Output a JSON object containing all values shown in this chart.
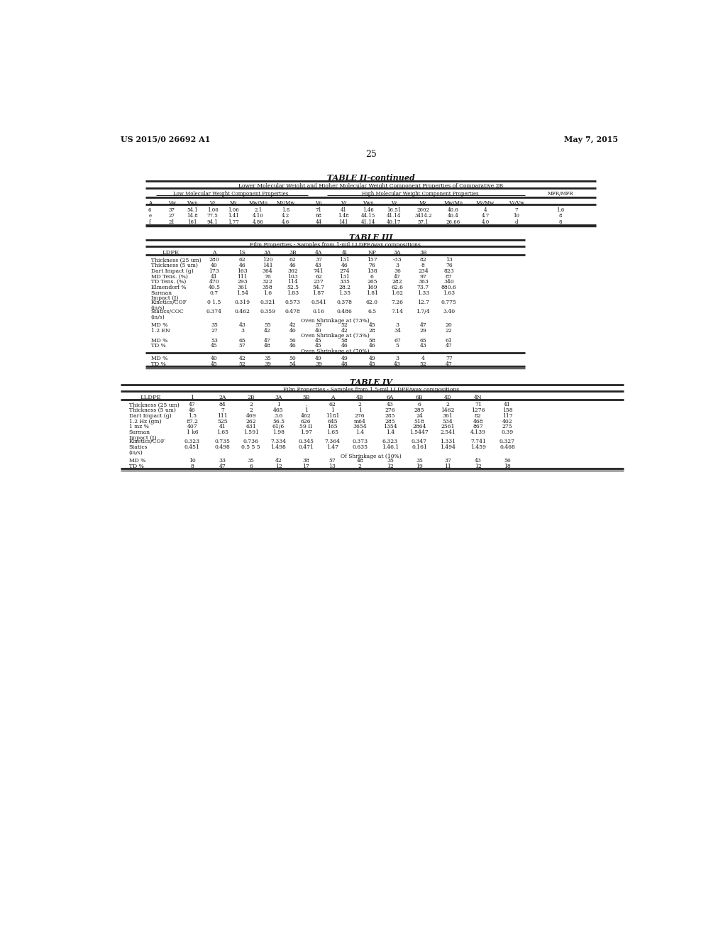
{
  "page_header_left": "US 2015/0 26692 A1",
  "page_header_right": "May 7, 2015",
  "page_number": "25",
  "background_color": "#ffffff",
  "table2_title": "TABLE II-continued",
  "table2_subtitle": "Lower Molecular Weight and Higher Molecular Weight Component Properties of Comparative 2B",
  "table2_group1": "Low Molecular Weight Component Properties",
  "table2_group2": "High Molecular Weight Component Properties",
  "table2_group3": "MFR/MFR",
  "table2_col_headers": [
    "A",
    "Vw",
    "Vwn",
    "Vz",
    "Mz",
    "Mw/Mn",
    "Mz/Mw",
    "Vn",
    "Vr",
    "Vwn",
    "Vz",
    "Mz",
    "Mw/Mn",
    "Mz/Mw",
    "Vz/Vw"
  ],
  "table2_rows": [
    [
      "6",
      "37",
      "54.1",
      "1.06",
      "1.06",
      "2.1",
      "1.8",
      "71",
      "41",
      "1.46",
      "16.51",
      "2002",
      "40.6",
      "4",
      "7",
      "1.6"
    ],
    [
      "e",
      "27",
      "14.8",
      "77.5",
      "1.41",
      "4.10",
      "4.2",
      "68",
      "1.48",
      "44.15",
      "41.14",
      "3414.2",
      "40.4",
      "4.7",
      "10",
      "8"
    ],
    [
      "f",
      "21",
      "161",
      "94.1",
      "1.77",
      "4.86",
      "4.6",
      "44",
      "141",
      "41.14",
      "40.17",
      "57.1",
      "26.66",
      "4.0",
      "d",
      "8"
    ]
  ],
  "table3_title": "TABLE III",
  "table3_subtitle": "Film Properties - Samples from 1-mil LLDPE/wax compositions",
  "table3_col_headers": [
    "LDPE",
    "A",
    "1S",
    "3A",
    "3B",
    "4A",
    "4I",
    "NP",
    "3A",
    "3B"
  ],
  "table3_rows": [
    [
      "Thickness (25 um)",
      "280",
      "62",
      "120",
      "62",
      "37",
      "131",
      "157",
      "-33",
      "82",
      "13"
    ],
    [
      "Thickness (5 um)",
      "40",
      "46",
      "141",
      "46",
      "43",
      "46",
      "76",
      "3",
      "8",
      "76"
    ],
    [
      "Dart Impact (g)",
      "173",
      "163",
      "364",
      "362",
      "741",
      "274",
      "138",
      "36",
      "234",
      "823"
    ],
    [
      "MD Tens. (%)",
      "41",
      "111",
      "76",
      "103",
      "62",
      "131",
      "6",
      "47",
      "97",
      "87"
    ],
    [
      "TD Tens. (%)",
      "470",
      "293",
      "322",
      "114",
      "237",
      "335",
      "265",
      "282",
      "363",
      "340"
    ],
    [
      "Elmendorf %",
      "40.5",
      "361",
      "358",
      "52.5",
      "54.7",
      "28.2",
      "169",
      "62.6",
      "73.7",
      "880.6"
    ],
    [
      "Surman",
      "0.7",
      "1.54",
      "1.6",
      "1.83",
      "1.87",
      "1.35",
      "1.81",
      "1.62",
      "1.33",
      "1.63"
    ],
    [
      "Impact (J)",
      "",
      "",
      "",
      "",
      "",
      "",
      "",
      "",
      "",
      ""
    ],
    [
      "Kinetics/COF",
      "0 1.5",
      "0.319",
      "0.321",
      "0.573",
      "0.541",
      "0.378",
      "62.0",
      "7.26",
      "12.7",
      "0.775"
    ],
    [
      "(in/s)",
      "",
      "",
      "",
      "",
      "",
      "",
      "",
      "",
      "",
      ""
    ],
    [
      "Statics/COC",
      "0.374",
      "0.462",
      "0.359",
      "0.478",
      "0.16",
      "0.486",
      "6.5",
      "7.14",
      "1.7/4",
      "3.40"
    ],
    [
      "(in/s)",
      "",
      "",
      "",
      "",
      "",
      "",
      "",
      "",
      "",
      ""
    ]
  ],
  "table3_shrink1_header": "Oven Shrinkage at (73%)",
  "table3_shrink1_rows": [
    [
      "MD %",
      "35",
      "43",
      "55",
      "42",
      "57",
      "52",
      "45",
      "3",
      "47",
      "20"
    ],
    [
      "1.2 EN",
      "27",
      "3",
      "42",
      "40",
      "40",
      "42",
      "28",
      "34",
      "29",
      "22"
    ]
  ],
  "table3_shrink2_header": "Oven Shrinkage at (73%)",
  "table3_shrink2_rows": [
    [
      "MD %",
      "53",
      "65",
      "47",
      "56",
      "45",
      "58",
      "58",
      "67",
      "65",
      "61"
    ],
    [
      "TD %",
      "45",
      "57",
      "48",
      "46",
      "45",
      "46",
      "46",
      "5",
      "43",
      "47"
    ]
  ],
  "table3_shrink3_header": "Oven Shrinkage at (70%)",
  "table3_shrink3_rows": [
    [
      "MD %",
      "40",
      "42",
      "35",
      "50",
      "49",
      "49",
      "49",
      "3",
      "4",
      "77"
    ],
    [
      "TD %",
      "45",
      "52",
      "39",
      "54",
      "39",
      "48",
      "45",
      "43",
      "52",
      "47"
    ]
  ],
  "table4_title": "TABLE IV",
  "table4_subtitle": "Film Properties - Samples from 1.5-mil LLDPE/wax compositions",
  "table4_col_headers": [
    "LLDPE",
    "1",
    "2A",
    "2B",
    "3A",
    "5B",
    "A",
    "4B",
    "6A",
    "6B",
    "4D",
    "4N"
  ],
  "table4_rows": [
    [
      "Thickness (25 um)",
      "47",
      "84",
      "2",
      "1",
      ".",
      "62",
      "2",
      "43",
      "6",
      "2",
      "71",
      "41"
    ],
    [
      "Thickness (5 um)",
      "46",
      "7",
      "2",
      "465",
      "1",
      "1",
      "1",
      "276",
      "285",
      "1462",
      "1276",
      "158"
    ],
    [
      "Dart Impact (g)",
      "1.5",
      "111",
      "469",
      "3.6",
      "462",
      "1181",
      "276",
      "285",
      "24",
      "361",
      "82",
      "117"
    ],
    [
      "1.2 Hz (gm)",
      "87.2",
      "525",
      "262",
      "56.5",
      "626",
      "645",
      "m64",
      "285",
      "518",
      "534",
      "468",
      "402"
    ],
    [
      "1 mz %",
      "407",
      "41",
      "631",
      "61/6",
      "59 II",
      "165",
      "3654",
      "1354",
      "2864",
      "2561",
      "867",
      "275"
    ],
    [
      "Surman",
      "1 k6",
      "1.65",
      "1.591",
      "1.98",
      "1.97",
      "1.65",
      "1.4",
      "1.4",
      "1.5447",
      "2.541",
      "4.139",
      "0.39"
    ],
    [
      "Impact (J)",
      "",
      "",
      "",
      "",
      "",
      "",
      "",
      "",
      "",
      "",
      "",
      ""
    ],
    [
      "Kinetics/COF",
      "0.323",
      "0.735",
      "0.736",
      "7.334",
      "0.345",
      "7.364",
      "0.373",
      "6.323",
      "0.347",
      "1.331",
      "7.741",
      "0.327"
    ],
    [
      "Statics",
      "0.451",
      "0.498",
      "0.5 5 5",
      "1.498",
      "0.471",
      "1.47",
      "0.635",
      "1.46.1",
      "0.161",
      "1.494",
      "1.459",
      "0.468"
    ],
    [
      "(in/s)",
      "",
      "",
      "",
      "",
      "",
      "",
      "",
      "",
      "",
      "",
      "",
      ""
    ]
  ],
  "table4_shrink_header": "Of Shrinkage at (10%)",
  "table4_shrink_rows": [
    [
      "MD %",
      "10",
      "33",
      "35",
      "42",
      "38",
      "57",
      "48",
      "35",
      "35",
      "37",
      "43",
      "56"
    ],
    [
      "TD %",
      "8",
      "47",
      "6",
      "12",
      "17",
      "13",
      "2",
      "12",
      "19",
      "11",
      "12",
      "18"
    ]
  ]
}
